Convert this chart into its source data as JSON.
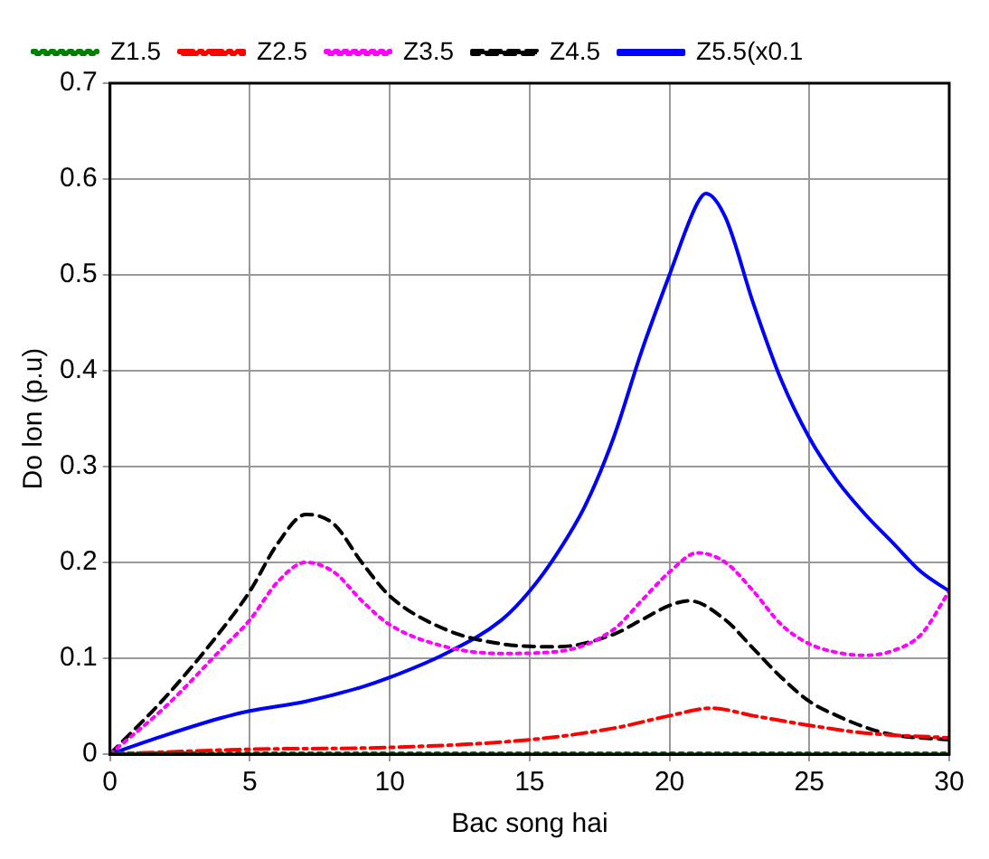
{
  "chart_data": {
    "type": "line",
    "xlabel": "Bac song hai",
    "ylabel": "Do lon (p.u)",
    "xlim": [
      0,
      30
    ],
    "xticks": [
      0,
      5,
      10,
      15,
      20,
      25,
      30
    ],
    "ylim": [
      0,
      0.7
    ],
    "yticks": [
      0,
      0.1,
      0.2,
      0.3,
      0.4,
      0.5,
      0.6,
      0.7
    ],
    "grid": true,
    "legend": "top left",
    "marker": "none",
    "series": [
      {
        "name": "Z1.5",
        "color": "#008000",
        "line_style": "dotted",
        "x": [
          0,
          10,
          20,
          30
        ],
        "values": [
          0.001,
          0.001,
          0.001,
          0.001
        ]
      },
      {
        "name": "Z2.5",
        "color": "#ff0000",
        "line_style": "dashdot",
        "x": [
          0,
          5,
          10,
          15,
          18,
          20,
          21.5,
          23,
          25,
          27,
          30
        ],
        "values": [
          0,
          0.005,
          0.007,
          0.015,
          0.027,
          0.04,
          0.048,
          0.04,
          0.03,
          0.022,
          0.017
        ]
      },
      {
        "name": "Z3.5",
        "color": "#ff00ff",
        "line_style": "dotted",
        "x": [
          0,
          2,
          4,
          5,
          6,
          7,
          8,
          9,
          10,
          12,
          14,
          16,
          18,
          19,
          20,
          21,
          22,
          23,
          24,
          25,
          26,
          27,
          28,
          29,
          30
        ],
        "values": [
          0,
          0.05,
          0.11,
          0.14,
          0.18,
          0.2,
          0.19,
          0.16,
          0.135,
          0.112,
          0.105,
          0.107,
          0.13,
          0.16,
          0.19,
          0.21,
          0.2,
          0.17,
          0.135,
          0.115,
          0.106,
          0.103,
          0.108,
          0.125,
          0.17
        ]
      },
      {
        "name": "Z4.5",
        "color": "#000000",
        "line_style": "dashed",
        "x": [
          0,
          2,
          4,
          5,
          6,
          7,
          8,
          9,
          10,
          12,
          14,
          16,
          18,
          19,
          20,
          20.7,
          22,
          23,
          24,
          25,
          26,
          27,
          28,
          30
        ],
        "values": [
          0,
          0.06,
          0.13,
          0.17,
          0.22,
          0.25,
          0.24,
          0.2,
          0.165,
          0.13,
          0.115,
          0.112,
          0.125,
          0.14,
          0.155,
          0.16,
          0.14,
          0.11,
          0.08,
          0.055,
          0.04,
          0.028,
          0.02,
          0.015
        ]
      },
      {
        "name": "Z5.5(x0.1",
        "color": "#0000ff",
        "line_style": "solid",
        "x": [
          0,
          2,
          4,
          5,
          7,
          9,
          10,
          12,
          14,
          15,
          16,
          17,
          18,
          19,
          20,
          21,
          21.3,
          22,
          23,
          24,
          25,
          26,
          27,
          28,
          29,
          30
        ],
        "values": [
          0,
          0.02,
          0.038,
          0.045,
          0.055,
          0.07,
          0.08,
          0.105,
          0.14,
          0.17,
          0.21,
          0.26,
          0.33,
          0.42,
          0.5,
          0.575,
          0.585,
          0.56,
          0.47,
          0.39,
          0.33,
          0.285,
          0.25,
          0.22,
          0.19,
          0.17
        ]
      }
    ]
  }
}
